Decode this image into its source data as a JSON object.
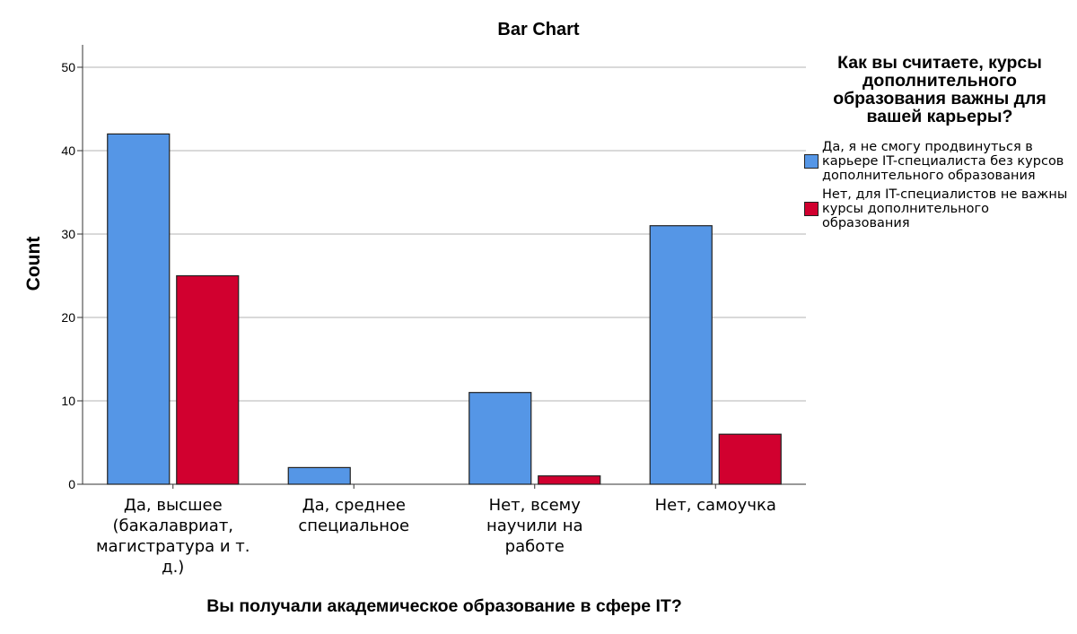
{
  "chart_data": {
    "type": "bar",
    "title": "Bar Chart",
    "xlabel": "Вы получали академическое образование в сфере IT?",
    "ylabel": "Count",
    "ylim": [
      0,
      52
    ],
    "yticks": [
      "0",
      "10",
      "20",
      "30",
      "40",
      "50"
    ],
    "grid": true,
    "categories": [
      "Да, высшее (бакалавриат, магистратура и т. д.)",
      "Да, среднее специальное",
      "Нет, всему научили на работе",
      "Нет, самоучка"
    ],
    "category_lines": [
      [
        "Да, высшее",
        "(бакалавриат,",
        "магистратура и т.",
        "д.)"
      ],
      [
        "Да, среднее",
        "специальное"
      ],
      [
        "Нет, всему",
        "научили на",
        "работе"
      ],
      [
        "Нет, самоучка"
      ]
    ],
    "series": [
      {
        "name": "Да, я не смогу продвинуться в карьере IT-специалиста без курсов дополнительного образования",
        "color": "#5596E6",
        "values": [
          42,
          2,
          11,
          31
        ]
      },
      {
        "name": "Нет, для IT-специалистов не важны курсы дополнительного образования",
        "color": "#D1002F",
        "values": [
          25,
          0,
          1,
          6
        ]
      }
    ],
    "legend": {
      "title": "Как вы считаете, курсы дополнительного образования важны для вашей карьеры?",
      "placement": "right"
    }
  }
}
